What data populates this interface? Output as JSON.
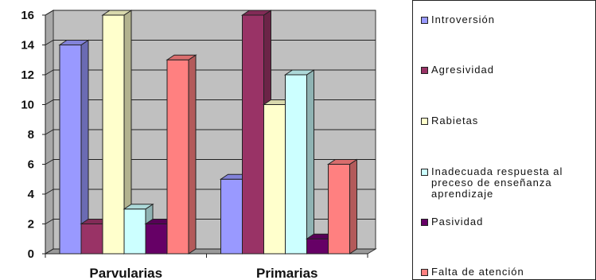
{
  "chart_data": {
    "type": "bar",
    "categories": [
      "Parvularias",
      "Primarias"
    ],
    "series": [
      {
        "name": "Introversión",
        "values": [
          14,
          5
        ],
        "color": "#9999FF"
      },
      {
        "name": "Agresividad",
        "values": [
          2,
          16
        ],
        "color": "#993366"
      },
      {
        "name": "Rabietas",
        "values": [
          16,
          10
        ],
        "color": "#FFFFCC"
      },
      {
        "name": "Inadecuada respuesta al preceso de enseñanza aprendizaje",
        "values": [
          3,
          12
        ],
        "color": "#CCFFFF"
      },
      {
        "name": "Pasividad",
        "values": [
          2,
          1
        ],
        "color": "#660066"
      },
      {
        "name": "Falta de atención",
        "values": [
          13,
          6
        ],
        "color": "#FF8080"
      }
    ],
    "ylim": [
      0,
      16
    ],
    "yticks": [
      "0",
      "2",
      "4",
      "6",
      "8",
      "10",
      "12",
      "14",
      "16"
    ],
    "grid": true,
    "three_d": true,
    "legend_position": "right",
    "plot_background": "#C0C0C0"
  }
}
